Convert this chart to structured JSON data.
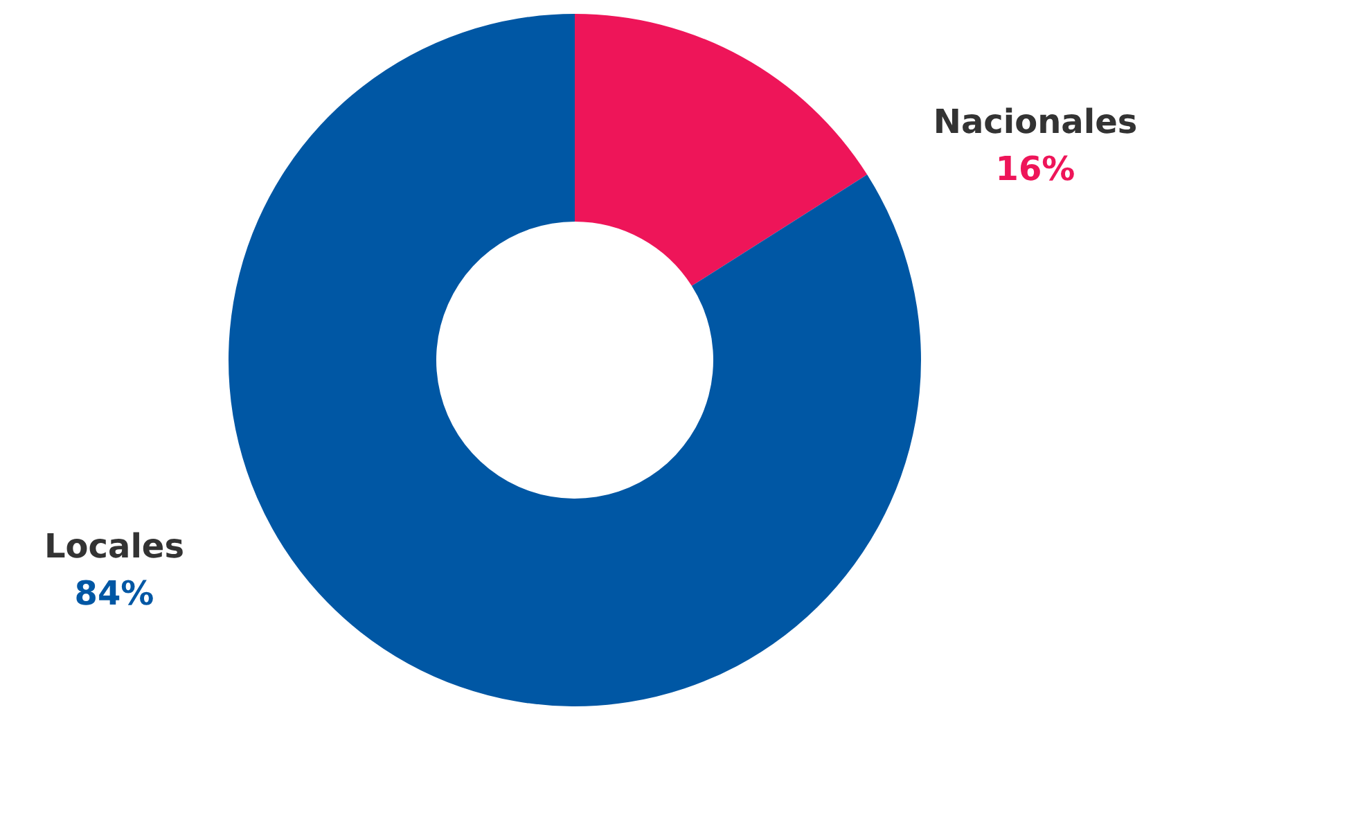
{
  "chart_data": {
    "type": "donut",
    "categories": [
      "Nacionales",
      "Locales"
    ],
    "values": [
      16,
      84
    ],
    "colors": [
      "#ee1559",
      "#0057a4"
    ],
    "value_labels": [
      "16%",
      "84%"
    ],
    "legend": false
  }
}
